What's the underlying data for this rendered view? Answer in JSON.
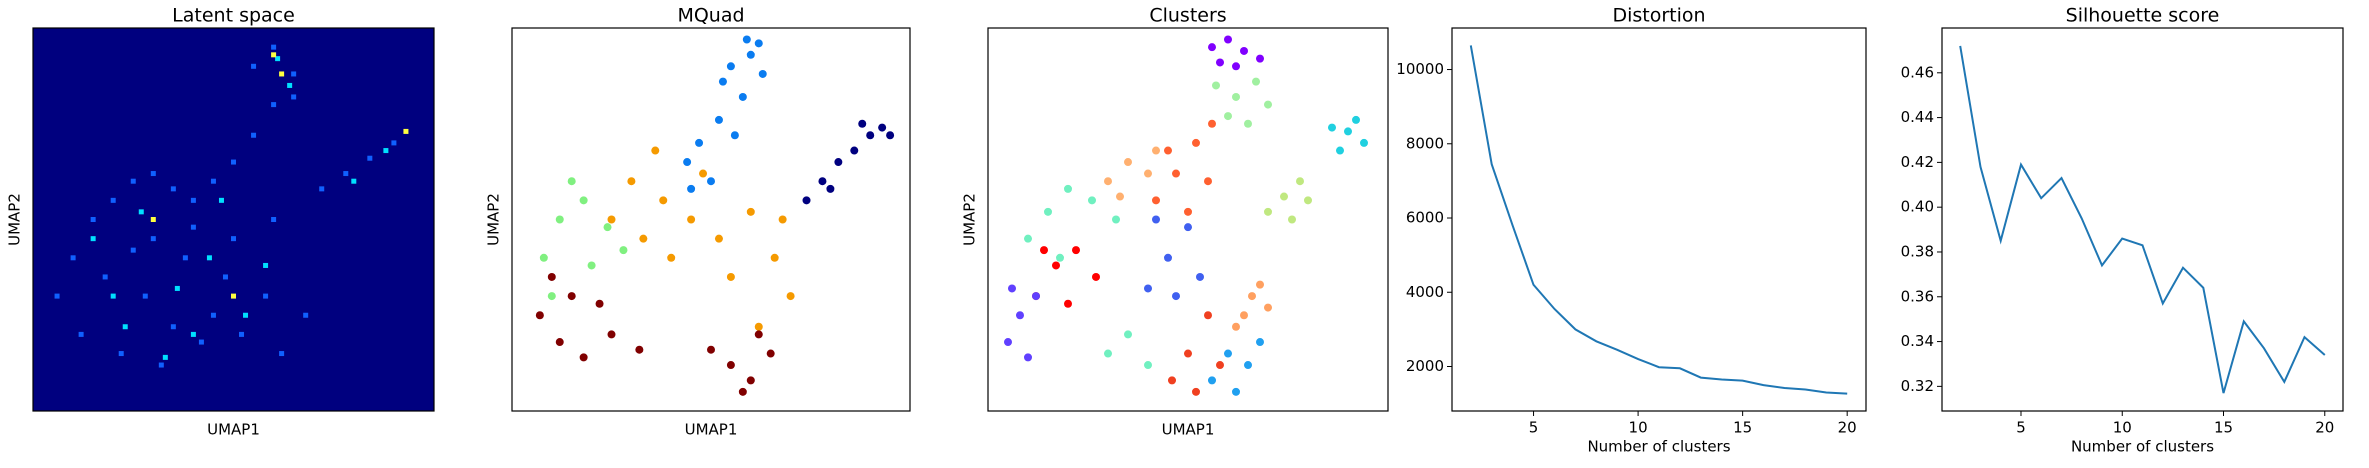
{
  "chart_data": [
    {
      "type": "scatter",
      "title": "Latent space",
      "xlabel": "UMAP1",
      "ylabel": "UMAP2",
      "xlim": [
        0,
        1
      ],
      "ylim": [
        0,
        1
      ],
      "facecolor": "#00007f",
      "series": [
        {
          "color": "#1060ff",
          "x": [
            0.06,
            0.1,
            0.15,
            0.2,
            0.25,
            0.3,
            0.35,
            0.4,
            0.45,
            0.5,
            0.55,
            0.6,
            0.65,
            0.12,
            0.22,
            0.32,
            0.42,
            0.52,
            0.62,
            0.18,
            0.28,
            0.38,
            0.48,
            0.58,
            0.68,
            0.3,
            0.4,
            0.5,
            0.6,
            0.55,
            0.6,
            0.65,
            0.72,
            0.78,
            0.84,
            0.9,
            0.45,
            0.35,
            0.25
          ],
          "y": [
            0.3,
            0.4,
            0.5,
            0.55,
            0.6,
            0.62,
            0.58,
            0.55,
            0.6,
            0.65,
            0.72,
            0.8,
            0.88,
            0.2,
            0.15,
            0.12,
            0.18,
            0.2,
            0.15,
            0.35,
            0.3,
            0.4,
            0.35,
            0.3,
            0.25,
            0.45,
            0.48,
            0.45,
            0.5,
            0.9,
            0.95,
            0.82,
            0.58,
            0.62,
            0.66,
            0.7,
            0.25,
            0.22,
            0.42
          ]
        },
        {
          "color": "#00e0ff",
          "x": [
            0.15,
            0.27,
            0.36,
            0.44,
            0.53,
            0.61,
            0.64,
            0.23,
            0.33,
            0.47,
            0.58,
            0.8,
            0.88,
            0.2,
            0.4
          ],
          "y": [
            0.45,
            0.52,
            0.32,
            0.4,
            0.25,
            0.92,
            0.85,
            0.22,
            0.14,
            0.55,
            0.38,
            0.6,
            0.68,
            0.3,
            0.2
          ]
        },
        {
          "color": "#ffff40",
          "x": [
            0.6,
            0.93,
            0.62,
            0.3,
            0.5
          ],
          "y": [
            0.93,
            0.73,
            0.88,
            0.5,
            0.3
          ]
        }
      ]
    },
    {
      "type": "scatter",
      "title": "MQuad",
      "xlabel": "UMAP1",
      "ylabel": "UMAP2",
      "xlim": [
        0,
        1
      ],
      "ylim": [
        0,
        1
      ],
      "series": [
        {
          "color": "#0a7cf0",
          "x": [
            0.55,
            0.6,
            0.63,
            0.58,
            0.52,
            0.47,
            0.44,
            0.5,
            0.56,
            0.62,
            0.45,
            0.53,
            0.59
          ],
          "y": [
            0.9,
            0.93,
            0.88,
            0.82,
            0.76,
            0.7,
            0.65,
            0.6,
            0.72,
            0.96,
            0.58,
            0.86,
            0.97
          ]
        },
        {
          "color": "#00007f",
          "x": [
            0.93,
            0.9,
            0.86,
            0.82,
            0.78,
            0.74,
            0.88,
            0.95,
            0.8
          ],
          "y": [
            0.74,
            0.72,
            0.68,
            0.65,
            0.6,
            0.55,
            0.75,
            0.72,
            0.58
          ]
        },
        {
          "color": "#f59a00",
          "x": [
            0.3,
            0.38,
            0.45,
            0.52,
            0.6,
            0.66,
            0.7,
            0.62,
            0.4,
            0.25,
            0.55,
            0.68,
            0.33,
            0.48,
            0.36
          ],
          "y": [
            0.6,
            0.55,
            0.5,
            0.45,
            0.52,
            0.4,
            0.3,
            0.22,
            0.4,
            0.5,
            0.35,
            0.5,
            0.45,
            0.62,
            0.68
          ]
        },
        {
          "color": "#80f080",
          "x": [
            0.08,
            0.12,
            0.18,
            0.24,
            0.1,
            0.2,
            0.28,
            0.15
          ],
          "y": [
            0.4,
            0.5,
            0.55,
            0.48,
            0.3,
            0.38,
            0.42,
            0.6
          ]
        },
        {
          "color": "#800000",
          "x": [
            0.07,
            0.12,
            0.18,
            0.25,
            0.32,
            0.15,
            0.22,
            0.55,
            0.6,
            0.65,
            0.62,
            0.58,
            0.1,
            0.5
          ],
          "y": [
            0.25,
            0.18,
            0.14,
            0.2,
            0.16,
            0.3,
            0.28,
            0.12,
            0.08,
            0.15,
            0.2,
            0.05,
            0.35,
            0.16
          ]
        }
      ]
    },
    {
      "type": "scatter",
      "title": "Clusters",
      "xlabel": "UMAP1",
      "ylabel": "UMAP2",
      "xlim": [
        0,
        1
      ],
      "ylim": [
        0,
        1
      ],
      "series": [
        {
          "color": "#8000ff",
          "x": [
            0.56,
            0.6,
            0.64,
            0.68,
            0.62,
            0.58
          ],
          "y": [
            0.95,
            0.97,
            0.94,
            0.92,
            0.9,
            0.91
          ]
        },
        {
          "color": "#a0f0a0",
          "x": [
            0.57,
            0.62,
            0.67,
            0.7,
            0.6,
            0.65
          ],
          "y": [
            0.85,
            0.82,
            0.86,
            0.8,
            0.77,
            0.75
          ]
        },
        {
          "color": "#20d0e0",
          "x": [
            0.86,
            0.9,
            0.94,
            0.92,
            0.88
          ],
          "y": [
            0.74,
            0.73,
            0.7,
            0.76,
            0.68
          ]
        },
        {
          "color": "#c0e880",
          "x": [
            0.7,
            0.74,
            0.78,
            0.8,
            0.76
          ],
          "y": [
            0.52,
            0.56,
            0.6,
            0.55,
            0.5
          ]
        },
        {
          "color": "#ff6030",
          "x": [
            0.42,
            0.47,
            0.52,
            0.56,
            0.5,
            0.45,
            0.55
          ],
          "y": [
            0.55,
            0.62,
            0.7,
            0.75,
            0.52,
            0.68,
            0.6
          ]
        },
        {
          "color": "#ffb070",
          "x": [
            0.3,
            0.35,
            0.4,
            0.33,
            0.42
          ],
          "y": [
            0.6,
            0.65,
            0.62,
            0.56,
            0.68
          ]
        },
        {
          "color": "#70f0c0",
          "x": [
            0.1,
            0.15,
            0.2,
            0.26,
            0.32,
            0.18,
            0.3,
            0.35,
            0.4
          ],
          "y": [
            0.45,
            0.52,
            0.58,
            0.55,
            0.5,
            0.4,
            0.15,
            0.2,
            0.12
          ]
        },
        {
          "color": "#4060f0",
          "x": [
            0.4,
            0.45,
            0.5,
            0.53,
            0.47,
            0.42
          ],
          "y": [
            0.32,
            0.4,
            0.48,
            0.35,
            0.3,
            0.5
          ]
        },
        {
          "color": "#ff0000",
          "x": [
            0.12,
            0.17,
            0.22,
            0.27,
            0.2,
            0.14
          ],
          "y": [
            0.3,
            0.38,
            0.42,
            0.35,
            0.28,
            0.42
          ]
        },
        {
          "color": "#6040ff",
          "x": [
            0.05,
            0.08,
            0.12,
            0.1,
            0.06
          ],
          "y": [
            0.18,
            0.25,
            0.3,
            0.14,
            0.32
          ]
        },
        {
          "color": "#f04020",
          "x": [
            0.46,
            0.5,
            0.55,
            0.58,
            0.52
          ],
          "y": [
            0.08,
            0.15,
            0.25,
            0.12,
            0.05
          ]
        },
        {
          "color": "#ffa060",
          "x": [
            0.62,
            0.66,
            0.7,
            0.68,
            0.64
          ],
          "y": [
            0.22,
            0.3,
            0.27,
            0.33,
            0.25
          ]
        },
        {
          "color": "#20a0f0",
          "x": [
            0.56,
            0.6,
            0.65,
            0.68,
            0.62
          ],
          "y": [
            0.08,
            0.15,
            0.12,
            0.18,
            0.05
          ]
        }
      ]
    },
    {
      "type": "line",
      "title": "Distortion",
      "xlabel": "Number of clusters",
      "color": "#1f77b4",
      "x": [
        2,
        3,
        4,
        5,
        6,
        7,
        8,
        9,
        10,
        11,
        12,
        13,
        14,
        15,
        16,
        17,
        18,
        19,
        20
      ],
      "values": [
        10650,
        7450,
        5800,
        4200,
        3550,
        3000,
        2680,
        2450,
        2200,
        1980,
        1950,
        1700,
        1650,
        1620,
        1500,
        1420,
        1380,
        1300,
        1270
      ],
      "xlim": [
        1.1,
        20.9
      ],
      "ylim": [
        801,
        11119
      ],
      "xticks": [
        5,
        10,
        15,
        20
      ],
      "yticks": [
        2000,
        4000,
        6000,
        8000,
        10000
      ]
    },
    {
      "type": "line",
      "title": "Silhouette score",
      "xlabel": "Number of clusters",
      "color": "#1f77b4",
      "x": [
        2,
        3,
        4,
        5,
        6,
        7,
        8,
        9,
        10,
        11,
        12,
        13,
        14,
        15,
        16,
        17,
        18,
        19,
        20
      ],
      "values": [
        0.472,
        0.418,
        0.385,
        0.419,
        0.404,
        0.413,
        0.395,
        0.374,
        0.386,
        0.383,
        0.357,
        0.373,
        0.364,
        0.317,
        0.349,
        0.337,
        0.322,
        0.342,
        0.334
      ],
      "xlim": [
        1.1,
        20.9
      ],
      "ylim": [
        0.309,
        0.48
      ],
      "xticks": [
        5,
        10,
        15,
        20
      ],
      "yticks": [
        0.32,
        0.34,
        0.36,
        0.38,
        {
          "value": 0.4,
          "label": "0.40"
        },
        0.42,
        0.44,
        0.46
      ]
    }
  ]
}
